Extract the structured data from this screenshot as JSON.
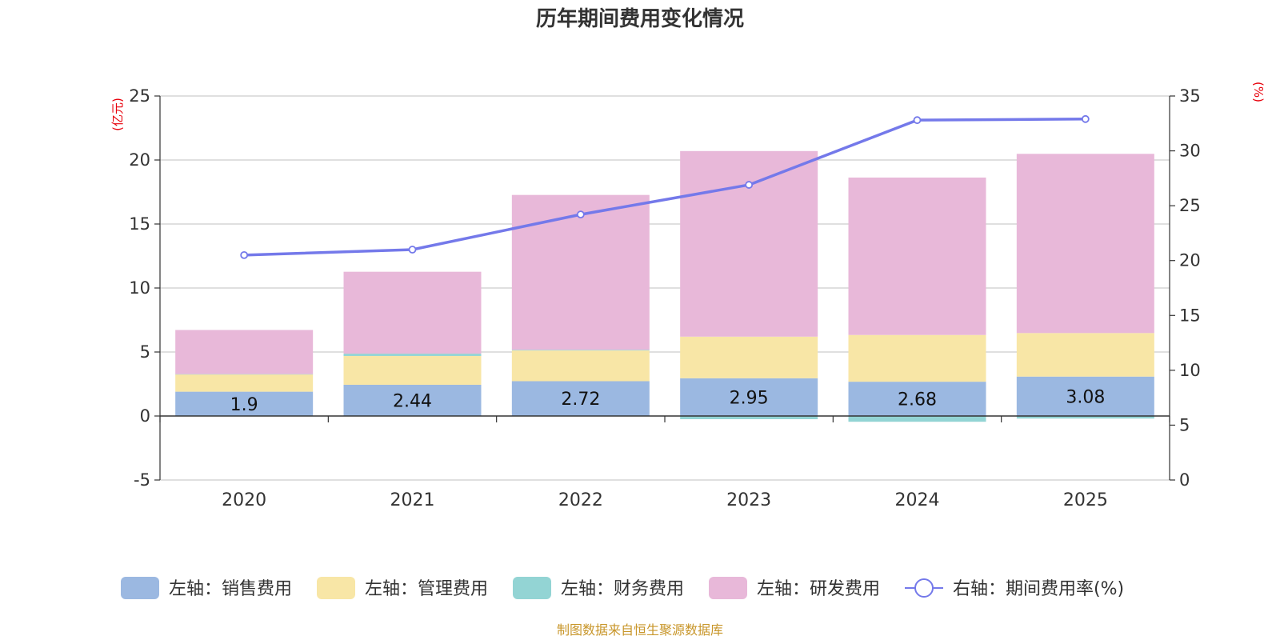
{
  "chart_data": {
    "type": "bar",
    "title": "历年期间费用变化情况",
    "categories": [
      "2020",
      "2021",
      "2022",
      "2023",
      "2024",
      "2025"
    ],
    "left_axis": {
      "unit_label": "(亿元)",
      "ylim": [
        -5,
        25
      ],
      "ticks": [
        "25",
        "20",
        "15",
        "10",
        "5",
        "0",
        "-5"
      ]
    },
    "right_axis": {
      "unit_label": "(%)",
      "ylim": [
        0,
        35
      ],
      "ticks": [
        "35",
        "30",
        "25",
        "20",
        "15",
        "10",
        "5",
        "0"
      ]
    },
    "stacked_series": [
      {
        "name": "左轴：销售费用",
        "color": "#9bb8e1",
        "values": [
          1.9,
          2.44,
          2.72,
          2.95,
          2.68,
          3.08
        ],
        "labels": [
          "1.9",
          "2.44",
          "2.72",
          "2.95",
          "2.68",
          "3.08"
        ]
      },
      {
        "name": "左轴：管理费用",
        "color": "#f8e6a6",
        "values": [
          1.35,
          2.25,
          2.4,
          3.25,
          3.65,
          3.4
        ]
      },
      {
        "name": "左轴：财务费用",
        "color": "#93d4d4",
        "values": [
          0.02,
          0.18,
          0.05,
          -0.25,
          -0.45,
          -0.2
        ]
      },
      {
        "name": "左轴：研发费用",
        "color": "#e8b8d9",
        "values": [
          3.45,
          6.4,
          12.1,
          14.5,
          12.3,
          14.0
        ]
      }
    ],
    "line_series": {
      "name": "右轴：期间费用率(%)",
      "color": "#7479ea",
      "values": [
        20.5,
        21.0,
        24.2,
        26.9,
        32.8,
        32.9
      ]
    },
    "grid": true,
    "legend_position": "bottom",
    "source_note": "制图数据来自恒生聚源数据库"
  }
}
